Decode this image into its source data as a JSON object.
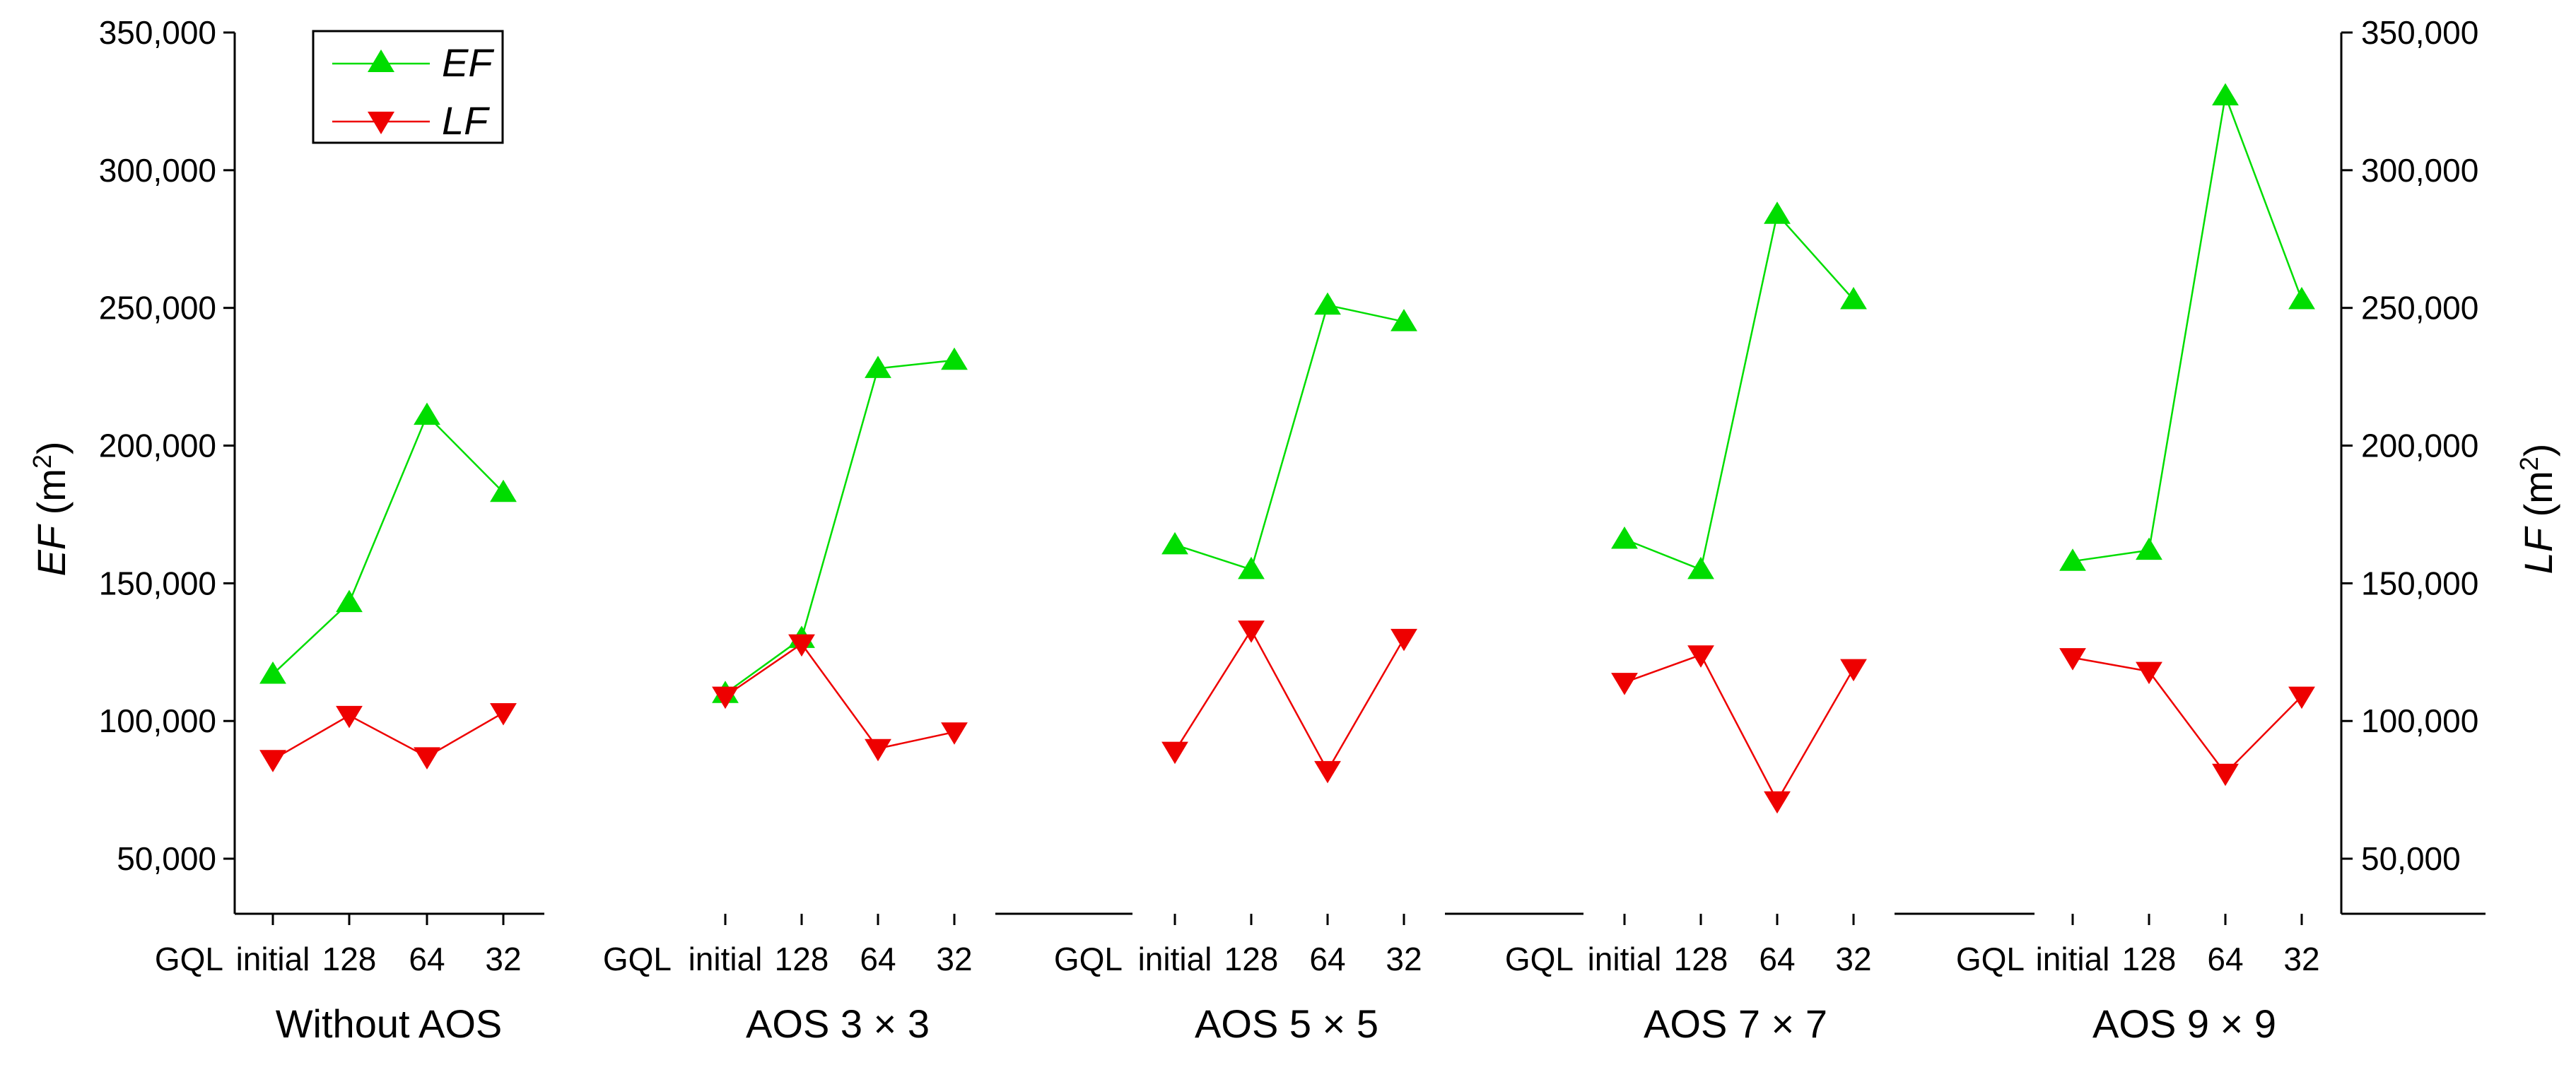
{
  "chart_data": {
    "type": "line",
    "title": "",
    "x_prefix_label": "GQL",
    "categories": [
      "initial",
      "128",
      "64",
      "32"
    ],
    "groups": [
      "Without AOS",
      "AOS 3 × 3",
      "AOS 5 × 5",
      "AOS 7 × 7",
      "AOS 9 × 9"
    ],
    "ylim": [
      30000,
      350000
    ],
    "yticks": [
      50000,
      100000,
      150000,
      200000,
      250000,
      300000,
      350000
    ],
    "ytick_labels": [
      "50,000",
      "100,000",
      "150,000",
      "200,000",
      "250,000",
      "300,000",
      "350,000"
    ],
    "ylabel_left": {
      "var": "EF",
      "unit": " (m",
      "sup": "2",
      "close": ")"
    },
    "ylabel_right": {
      "var": "LF",
      "unit": " (m",
      "sup": "2",
      "close": ")"
    },
    "series": [
      {
        "name": "EF",
        "color": "#00dd00",
        "marker": "triangle-up",
        "values": [
          [
            117000,
            143000,
            211000,
            183000
          ],
          [
            110000,
            130000,
            228000,
            231000
          ],
          [
            164000,
            155000,
            251000,
            245000
          ],
          [
            166000,
            155000,
            284000,
            253000
          ],
          [
            158000,
            162000,
            327000,
            253000
          ]
        ]
      },
      {
        "name": "LF",
        "color": "#ee0000",
        "marker": "triangle-down",
        "values": [
          [
            86000,
            102000,
            87000,
            103000
          ],
          [
            109000,
            128000,
            90000,
            96000
          ],
          [
            89000,
            133000,
            82000,
            130000
          ],
          [
            114000,
            124000,
            71000,
            119000
          ],
          [
            123000,
            118000,
            81000,
            109000
          ]
        ]
      }
    ],
    "legend": {
      "position": "top-left",
      "entries": [
        "EF",
        "LF"
      ]
    }
  }
}
